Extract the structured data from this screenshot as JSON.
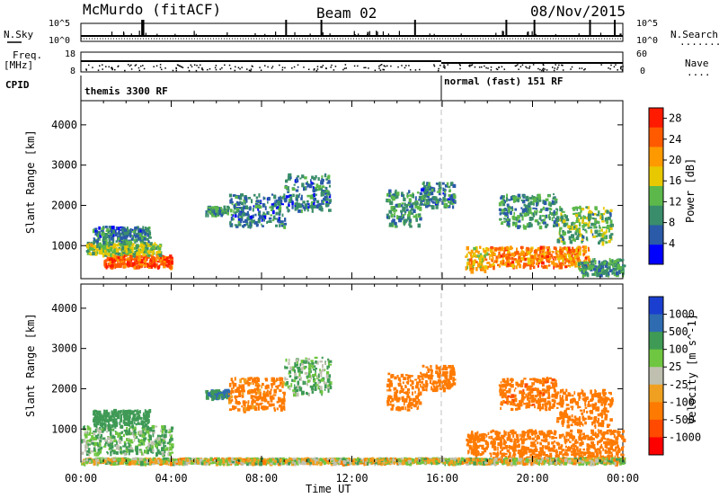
{
  "header": {
    "station": "McMurdo (fitACF)",
    "beam": "Beam 02",
    "date": "08/Nov/2015"
  },
  "left_labels": {
    "nsky": "N.Sky",
    "freq": "Freq.",
    "freq_unit": "[MHz]",
    "cpid": "CPID"
  },
  "right_labels": {
    "nsearch": "N.Search",
    "nsearch_dots": ".........",
    "nave": "Nave",
    "nave_dots": "...."
  },
  "noise_panel": {
    "left_ticks": [
      "10^5",
      "10^0"
    ],
    "right_ticks": [
      "10^5",
      "10^0"
    ]
  },
  "freq_panel": {
    "left_ticks": [
      "18",
      "8"
    ],
    "right_ticks": [
      "60",
      "0"
    ]
  },
  "cpid": [
    {
      "label": "themis 3300 RF",
      "start_hour": 0
    },
    {
      "label": "normal (fast) 151 RF",
      "start_hour": 16
    }
  ],
  "colors": {
    "power_scale": [
      "#0000ff",
      "#2a5aa8",
      "#3a8d6a",
      "#5cb84a",
      "#e8c800",
      "#ff9900",
      "#ff5a00",
      "#ff1a00"
    ],
    "velocity_scale": [
      "#1a3fd0",
      "#2f6bb0",
      "#3f9a55",
      "#6fc640",
      "#c0c0b0",
      "#f0a020",
      "#ff7a00",
      "#ff4a00",
      "#ff0000"
    ]
  },
  "chart_data": [
    {
      "type": "heatmap",
      "title": "",
      "xlabel": "Time UT",
      "ylabel": "Slant Range [km]",
      "x_ticks": [
        "00:00",
        "04:00",
        "08:00",
        "12:00",
        "16:00",
        "20:00",
        "00:00"
      ],
      "y_ticks": [
        "1000",
        "2000",
        "3000",
        "4000"
      ],
      "xlim": [
        0,
        24
      ],
      "ylim": [
        180,
        4600
      ],
      "colorbar": {
        "label": "Power [dB]",
        "ticks": [
          "4",
          "8",
          "12",
          "16",
          "20",
          "24",
          "28"
        ],
        "range": [
          0,
          30
        ]
      },
      "echo_regions": [
        {
          "t": [
            1,
            4
          ],
          "range": [
            500,
            800
          ],
          "value": 26
        },
        {
          "t": [
            0.2,
            3.5
          ],
          "range": [
            800,
            1100
          ],
          "value": 14
        },
        {
          "t": [
            0.5,
            3
          ],
          "range": [
            1100,
            1500
          ],
          "value": 8
        },
        {
          "t": [
            5.5,
            6.5
          ],
          "range": [
            1800,
            2000
          ],
          "value": 10
        },
        {
          "t": [
            6.5,
            9
          ],
          "range": [
            1500,
            2300
          ],
          "value": 8
        },
        {
          "t": [
            9,
            11
          ],
          "range": [
            1900,
            2800
          ],
          "value": 8
        },
        {
          "t": [
            13.5,
            15
          ],
          "range": [
            1500,
            2400
          ],
          "value": 10
        },
        {
          "t": [
            15,
            16.5
          ],
          "range": [
            2000,
            2600
          ],
          "value": 8
        },
        {
          "t": [
            17,
            18
          ],
          "range": [
            400,
            1000
          ],
          "value": 18
        },
        {
          "t": [
            18,
            22.5
          ],
          "range": [
            500,
            1000
          ],
          "value": 22
        },
        {
          "t": [
            18.5,
            21
          ],
          "range": [
            1500,
            2300
          ],
          "value": 10
        },
        {
          "t": [
            21,
            23.5
          ],
          "range": [
            1100,
            2000
          ],
          "value": 12
        },
        {
          "t": [
            22,
            24
          ],
          "range": [
            300,
            700
          ],
          "value": 10
        }
      ]
    },
    {
      "type": "heatmap",
      "title": "",
      "xlabel": "Time UT",
      "ylabel": "Slant Range [km]",
      "x_ticks": [
        "00:00",
        "04:00",
        "08:00",
        "12:00",
        "16:00",
        "20:00",
        "00:00"
      ],
      "y_ticks": [
        "1000",
        "2000",
        "3000",
        "4000"
      ],
      "xlim": [
        0,
        24
      ],
      "ylim": [
        180,
        4600
      ],
      "colorbar": {
        "label": "Velocity [m s^-1]",
        "ticks": [
          "1000",
          "500",
          "100",
          "25",
          "-25",
          "-100",
          "-500",
          "-1000"
        ],
        "range": [
          -1000,
          1000
        ]
      },
      "echo_regions": [
        {
          "t": [
            0,
            4
          ],
          "range": [
            400,
            1100
          ],
          "value": 100
        },
        {
          "t": [
            0.5,
            3
          ],
          "range": [
            1100,
            1500
          ],
          "value": 300
        },
        {
          "t": [
            5.5,
            6.5
          ],
          "range": [
            1800,
            2000
          ],
          "value": 500
        },
        {
          "t": [
            6.5,
            9
          ],
          "range": [
            1500,
            2300
          ],
          "value": -200
        },
        {
          "t": [
            9,
            11
          ],
          "range": [
            1900,
            2800
          ],
          "value": 100
        },
        {
          "t": [
            13.5,
            15
          ],
          "range": [
            1500,
            2400
          ],
          "value": -300
        },
        {
          "t": [
            15,
            16.5
          ],
          "range": [
            2000,
            2600
          ],
          "value": -300
        },
        {
          "t": [
            17,
            18
          ],
          "range": [
            400,
            1000
          ],
          "value": -300
        },
        {
          "t": [
            18,
            24
          ],
          "range": [
            300,
            1000
          ],
          "value": -300
        },
        {
          "t": [
            18.5,
            21
          ],
          "range": [
            1500,
            2300
          ],
          "value": -400
        },
        {
          "t": [
            21,
            23.5
          ],
          "range": [
            1100,
            2000
          ],
          "value": -300
        },
        {
          "t": [
            0,
            24
          ],
          "range": [
            180,
            300
          ],
          "value": 0
        }
      ]
    }
  ]
}
